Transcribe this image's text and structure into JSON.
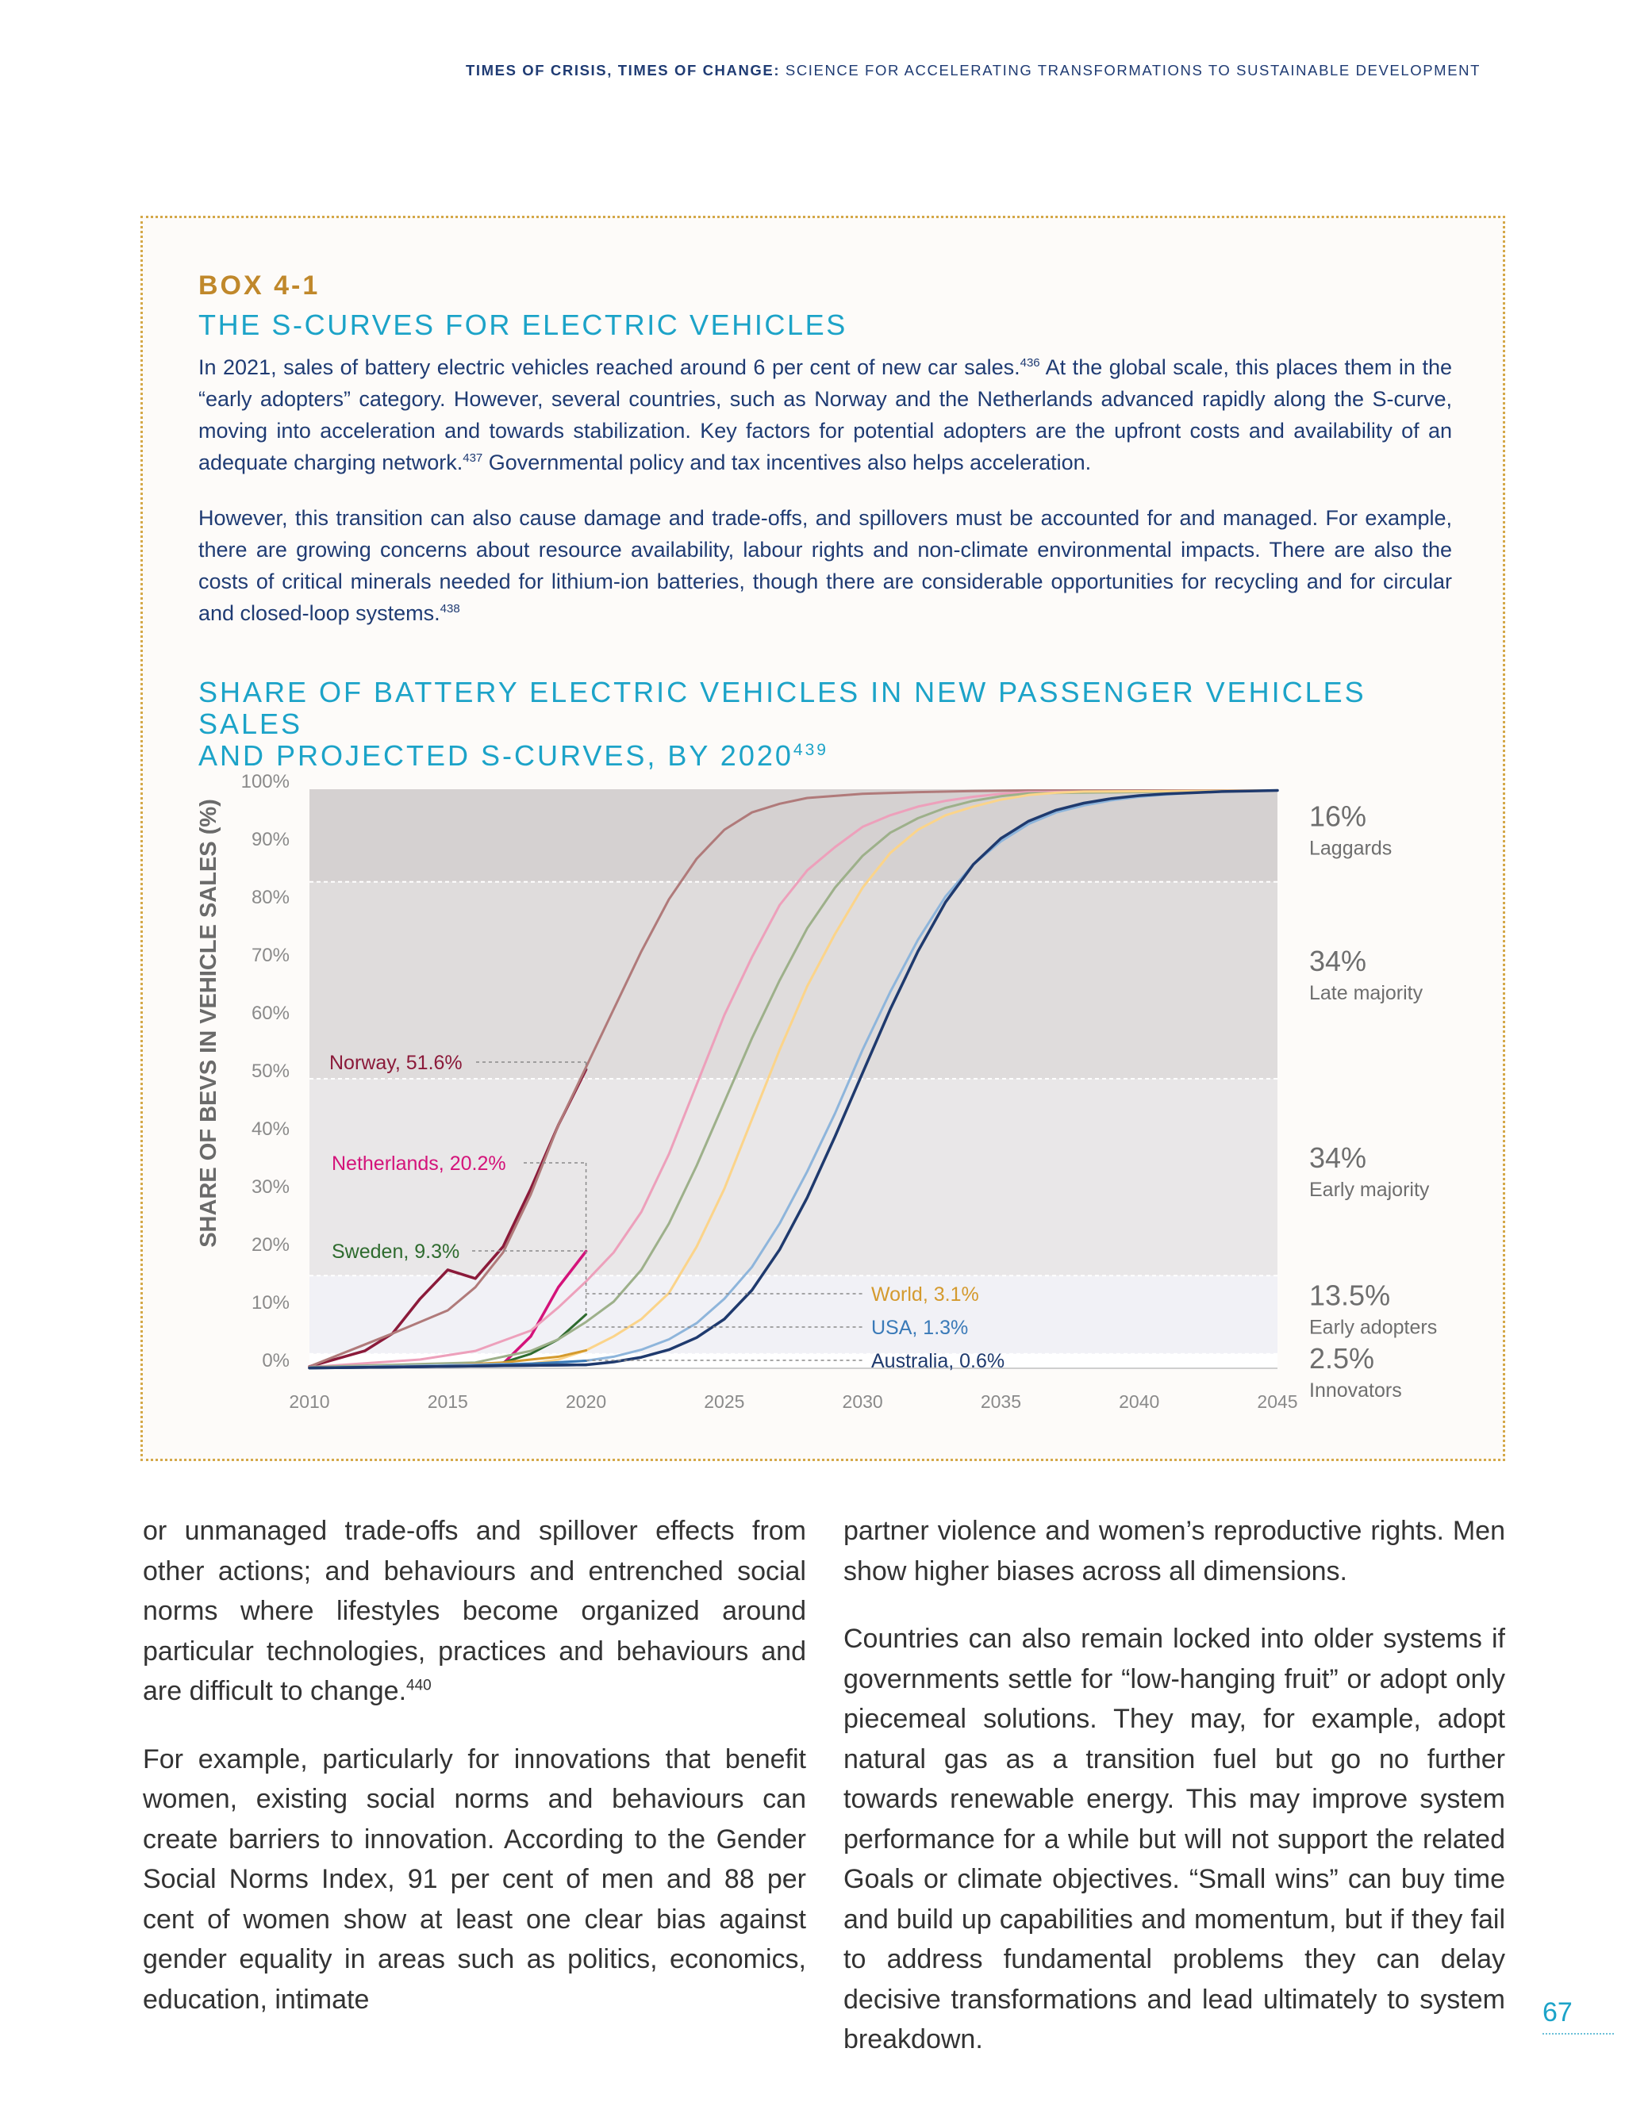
{
  "header": {
    "bold": "TIMES OF CRISIS, TIMES OF CHANGE:",
    "rest": "SCIENCE FOR ACCELERATING TRANSFORMATIONS TO SUSTAINABLE DEVELOPMENT"
  },
  "box": {
    "label": "BOX 4-1",
    "title": "THE S-CURVES FOR ELECTRIC VEHICLES",
    "p1": {
      "a": "In 2021, sales of battery electric vehicles reached around 6 per cent of new car sales.",
      "ref1": "436",
      "b": " At the global scale, this places them in the “early adopters” category. However, several countries, such as Norway and the Netherlands advanced rapidly along the S-curve, moving into acceleration and towards stabilization. Key factors for potential adopters are the upfront costs and availability of an adequate charging network.",
      "ref2": "437",
      "c": " Governmental policy and tax incentives also helps acceleration."
    },
    "p2": {
      "a": "However, this transition can also cause damage and trade-offs, and spillovers must be accounted for and managed. For example, there are growing concerns about resource availability, labour rights and non-climate environmental impacts. There are also the costs of critical minerals needed for lithium-ion batteries, though there are considerable opportunities for recycling and for circular and closed-loop systems.",
      "ref": "438"
    },
    "chart_title_line1": "SHARE OF BATTERY ELECTRIC VEHICLES IN NEW PASSENGER VEHICLES SALES",
    "chart_title_line2": "AND PROJECTED S-CURVES, BY 2020",
    "chart_title_ref": "439"
  },
  "chart_data": {
    "type": "line",
    "ylabel": "SHARE OF BEVS IN VEHICLE SALES (%)",
    "xlim": [
      2010,
      2045
    ],
    "ylim": [
      0,
      100
    ],
    "y_ticks": [
      0,
      10,
      20,
      30,
      40,
      50,
      60,
      70,
      80,
      90,
      100
    ],
    "y_tick_labels": [
      "0%",
      "10%",
      "20%",
      "30%",
      "40%",
      "50%",
      "60%",
      "70%",
      "80%",
      "90%",
      "100%"
    ],
    "x_ticks": [
      2010,
      2015,
      2020,
      2025,
      2030,
      2035,
      2040,
      2045
    ],
    "x_tick_labels": [
      "2010",
      "2015",
      "2020",
      "2025",
      "2030",
      "2035",
      "2040",
      "2045"
    ],
    "grid": false,
    "bands": [
      {
        "from": 0,
        "to": 2.5,
        "pct_label": "2.5%",
        "name": "Innovators",
        "color": "#ffffff"
      },
      {
        "from": 2.5,
        "to": 16,
        "pct_label": "13.5%",
        "name": "Early adopters",
        "color": "#f1f1f6"
      },
      {
        "from": 16,
        "to": 50,
        "pct_label": "34%",
        "name": "Early majority",
        "color": "#e9e7e8"
      },
      {
        "from": 50,
        "to": 84,
        "pct_label": "34%",
        "name": "Late majority",
        "color": "#dfdcdc"
      },
      {
        "from": 84,
        "to": 100,
        "pct_label": "16%",
        "name": "Laggards",
        "color": "#d5d1d1"
      }
    ],
    "series": [
      {
        "name": "Norway",
        "label": "Norway, 51.6%",
        "color": "#8b1a3a",
        "width": 3.5,
        "x": [
          2010,
          2012,
          2013,
          2014,
          2015,
          2016,
          2017,
          2018,
          2019,
          2020
        ],
        "values": [
          0.3,
          3,
          6,
          12,
          17,
          15.5,
          21,
          31,
          42,
          51.6
        ]
      },
      {
        "name": "Norway projection",
        "color": "#b07a7a",
        "width": 3,
        "x": [
          2010,
          2013,
          2015,
          2016,
          2017,
          2018,
          2019,
          2020,
          2021,
          2022,
          2023,
          2024,
          2025,
          2026,
          2027,
          2028,
          2030,
          2032,
          2034,
          2036,
          2045
        ],
        "values": [
          0.3,
          6,
          10,
          14,
          20,
          30,
          42,
          52,
          62,
          72,
          81,
          88,
          93,
          96,
          97.5,
          98.5,
          99.2,
          99.5,
          99.7,
          99.8,
          99.8
        ]
      },
      {
        "name": "Netherlands",
        "label": "Netherlands, 20.2%",
        "color": "#d4137a",
        "width": 3.5,
        "x": [
          2010,
          2017,
          2018,
          2019,
          2020
        ],
        "values": [
          0.2,
          0.8,
          5.5,
          14,
          20.2
        ]
      },
      {
        "name": "Netherlands projection",
        "color": "#eda0bb",
        "width": 3,
        "x": [
          2010,
          2014,
          2016,
          2018,
          2019,
          2020,
          2021,
          2022,
          2023,
          2024,
          2025,
          2026,
          2027,
          2028,
          2029,
          2030,
          2031,
          2032,
          2033,
          2034,
          2035,
          2036,
          2045
        ],
        "values": [
          0.2,
          1.5,
          3,
          6.5,
          10.5,
          15,
          20,
          27,
          37,
          49,
          61,
          71,
          80,
          86,
          90,
          93.5,
          95.5,
          97,
          98,
          98.7,
          99.2,
          99.5,
          99.8
        ]
      },
      {
        "name": "Sweden",
        "label": "Sweden, 9.3%",
        "color": "#2e6b2e",
        "width": 3,
        "x": [
          2010,
          2016,
          2017,
          2018,
          2019,
          2020
        ],
        "values": [
          0.2,
          0.5,
          1,
          2.5,
          5,
          9.3
        ]
      },
      {
        "name": "Sweden projection",
        "color": "#9db08a",
        "width": 3,
        "x": [
          2010,
          2016,
          2018,
          2019,
          2020,
          2021,
          2022,
          2023,
          2024,
          2025,
          2026,
          2027,
          2028,
          2029,
          2030,
          2031,
          2032,
          2033,
          2034,
          2035,
          2036,
          2045
        ],
        "values": [
          0.2,
          1,
          3,
          5,
          8,
          11.5,
          17,
          25,
          35,
          46,
          57,
          67,
          76,
          83,
          88.5,
          92.5,
          95,
          96.8,
          98,
          98.8,
          99.3,
          99.8
        ]
      },
      {
        "name": "World projection",
        "color": "#fbd48a",
        "width": 3,
        "x": [
          2010,
          2018,
          2019,
          2020,
          2021,
          2022,
          2023,
          2024,
          2025,
          2026,
          2027,
          2028,
          2029,
          2030,
          2031,
          2032,
          2033,
          2034,
          2035,
          2036,
          2037,
          2038,
          2045
        ],
        "values": [
          0.1,
          0.8,
          1.5,
          3.1,
          5.5,
          8.5,
          13,
          21,
          31,
          43,
          55,
          66,
          75,
          83,
          89,
          93,
          95.5,
          97,
          98.2,
          99,
          99.4,
          99.6,
          99.8
        ]
      },
      {
        "name": "World",
        "label": "World, 3.1%",
        "color": "#d49a2e",
        "width": 3,
        "x": [
          2010,
          2015,
          2017,
          2018,
          2019,
          2020
        ],
        "values": [
          0.1,
          0.5,
          1,
          1.5,
          2,
          3.1
        ]
      },
      {
        "name": "USA projection",
        "color": "#8eb5db",
        "width": 3,
        "x": [
          2010,
          2019,
          2020,
          2021,
          2022,
          2023,
          2024,
          2025,
          2026,
          2027,
          2028,
          2029,
          2030,
          2031,
          2032,
          2033,
          2034,
          2035,
          2036,
          2037,
          2038,
          2039,
          2040,
          2041,
          2042,
          2043,
          2045
        ],
        "values": [
          0.1,
          0.9,
          1.3,
          2,
          3.2,
          5,
          7.8,
          12,
          17.5,
          25,
          34,
          44,
          55,
          65,
          74,
          81.5,
          87,
          91,
          94,
          96,
          97.2,
          98.1,
          98.7,
          99.1,
          99.4,
          99.6,
          99.8
        ]
      },
      {
        "name": "USA",
        "label": "USA, 1.3%",
        "color": "#3a7ab8",
        "width": 3,
        "x": [
          2010,
          2015,
          2018,
          2020
        ],
        "values": [
          0.05,
          0.3,
          0.8,
          1.3
        ]
      },
      {
        "name": "Australia projection",
        "color": "#1f3a6e",
        "width": 3.5,
        "x": [
          2010,
          2020,
          2021,
          2022,
          2023,
          2024,
          2025,
          2026,
          2027,
          2028,
          2029,
          2030,
          2031,
          2032,
          2033,
          2034,
          2035,
          2036,
          2037,
          2038,
          2039,
          2040,
          2041,
          2042,
          2043,
          2044,
          2045
        ],
        "values": [
          0.05,
          0.6,
          1.1,
          1.9,
          3.2,
          5.3,
          8.5,
          13.5,
          20.5,
          29.5,
          40,
          51,
          62,
          72,
          80.5,
          87,
          91.5,
          94.5,
          96.4,
          97.6,
          98.4,
          98.9,
          99.2,
          99.4,
          99.6,
          99.7,
          99.8
        ]
      },
      {
        "name": "Australia",
        "label": "Australia, 0.6%",
        "color": "#1f3a6e",
        "width": 3.5,
        "x": [
          2010,
          2020
        ],
        "values": [
          0.05,
          0.6
        ]
      }
    ]
  },
  "body": {
    "left_p1": "or unmanaged trade-offs and spillover effects from other actions; and behaviours and entrenched social norms where lifestyles become organized around particular technologies, practices and behaviours and are difficult to change.",
    "left_p1_ref": "440",
    "left_p2": "For example, particularly for innovations that benefit women, existing social norms and behaviours can create barriers to innovation. According to the Gender Social Norms Index, 91 per cent of men and 88 per cent of women show at least one clear bias against gender equality in areas such as politics, economics, education, intimate",
    "right_p1": "partner violence and women’s reproductive rights. Men show higher biases across all dimensions.",
    "right_p2": "Countries can also remain locked into older systems if governments settle for “low-hanging fruit” or adopt only piecemeal solutions. They may, for example, adopt natural gas as a transition fuel but go no further towards renewable energy. This may improve system performance for a while but will not support the related Goals or climate objectives. “Small wins” can buy time and build up capabilities and momentum, but if they fail to address fundamental problems they can delay decisive transformations and lead ultimately to system breakdown."
  },
  "page_number": "67"
}
